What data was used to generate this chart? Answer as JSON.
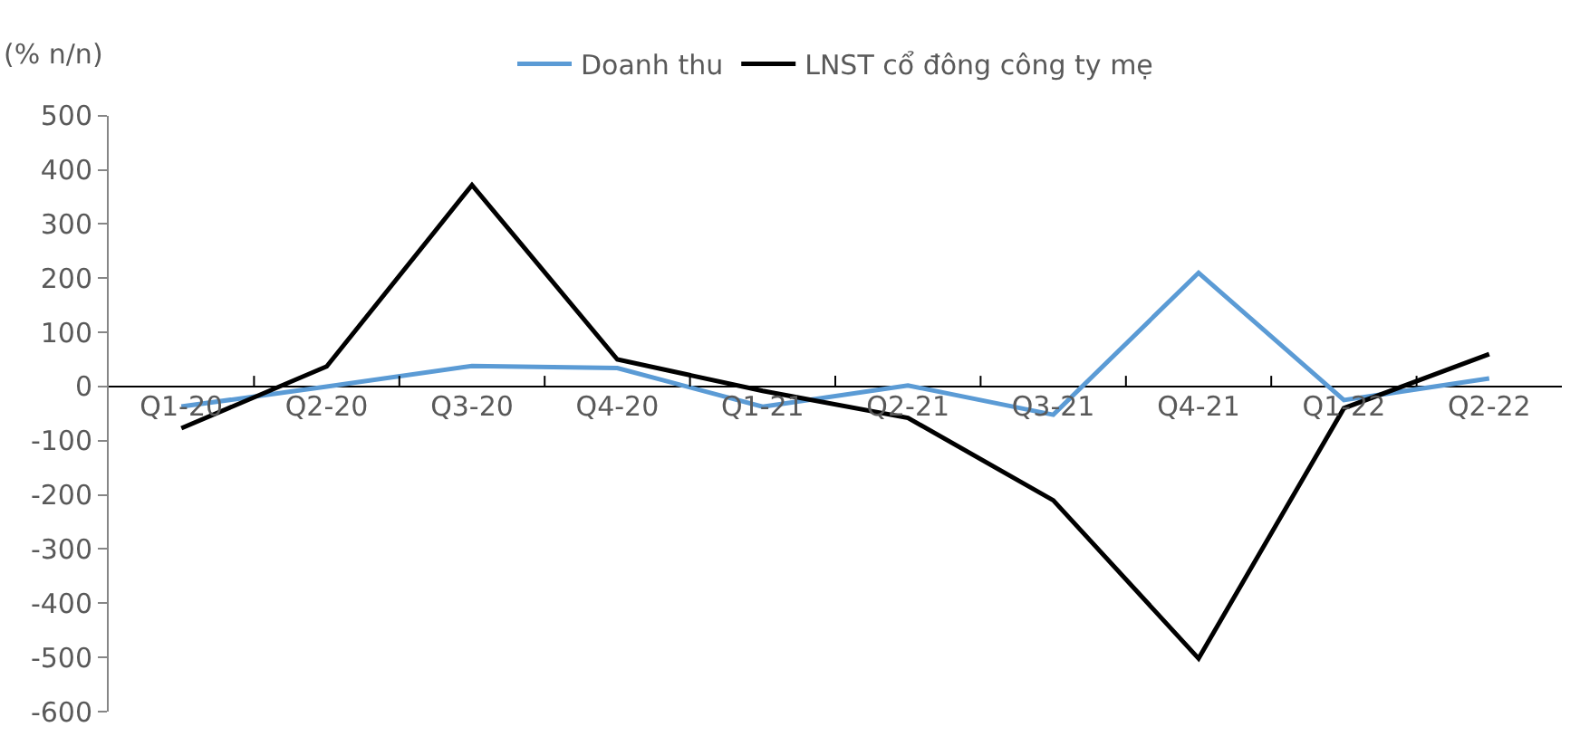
{
  "chart_data": {
    "type": "line",
    "ylabel": "(% n/n)",
    "categories": [
      "Q1-20",
      "Q2-20",
      "Q3-20",
      "Q4-20",
      "Q1-21",
      "Q2-21",
      "Q3-21",
      "Q4-21",
      "Q1-22",
      "Q2-22"
    ],
    "series": [
      {
        "name": "Doanh thu",
        "color": "#5b9bd5",
        "values": [
          -37,
          0,
          38,
          34,
          -37,
          2,
          -52,
          210,
          -25,
          15
        ]
      },
      {
        "name": "LNST cổ đông công ty mẹ",
        "color": "#000000",
        "values": [
          -77,
          37,
          372,
          50,
          -8,
          -58,
          -210,
          -502,
          -40,
          60
        ]
      }
    ],
    "ylim": [
      -600,
      500
    ],
    "yticks": [
      -600,
      -500,
      -400,
      -300,
      -200,
      -100,
      0,
      100,
      200,
      300,
      400,
      500
    ],
    "legend": "top",
    "marker": "none",
    "line_style": "solid"
  }
}
